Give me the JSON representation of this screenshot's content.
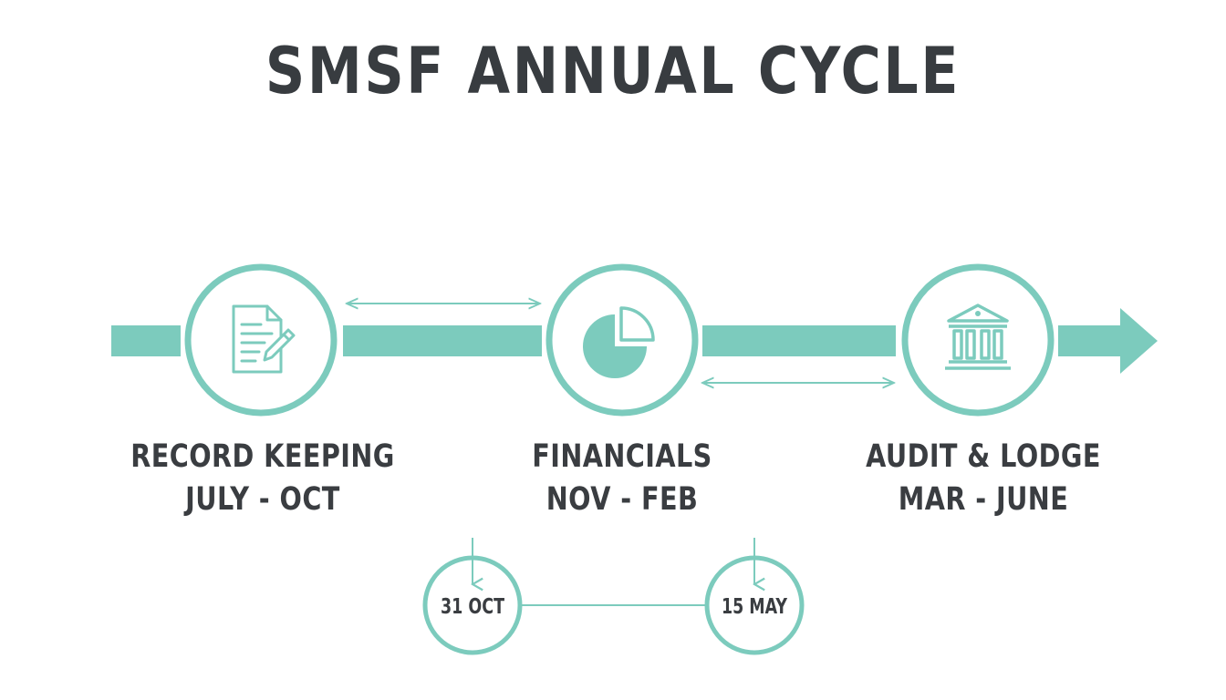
{
  "title": "SMSF ANNUAL CYCLE",
  "colors": {
    "teal": "#7ccbbd",
    "text": "#3a3d41",
    "background": "#ffffff"
  },
  "stages": [
    {
      "name": "RECORD KEEPING",
      "period": "JULY - OCT",
      "icon": "document-pen-icon"
    },
    {
      "name": "FINANCIALS",
      "period": "NOV - FEB",
      "icon": "pie-chart-icon"
    },
    {
      "name": "AUDIT & LODGE",
      "period": "MAR - JUNE",
      "icon": "bank-building-icon"
    }
  ],
  "deadlines": [
    {
      "label": "31 OCT"
    },
    {
      "label": "15 MAY"
    }
  ]
}
